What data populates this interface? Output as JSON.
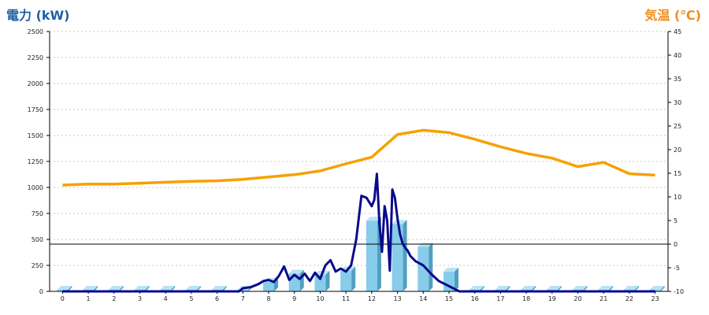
{
  "titles": {
    "left_axis": "電力 (kW)",
    "right_axis": "気温 (℃)"
  },
  "colors": {
    "power_line": "#0a0a8c",
    "temperature_line": "#f5a100",
    "bar_front": "#87cceb",
    "bar_top": "#b8e3f5",
    "bar_side": "#4f9fc0",
    "grid": "#c8c8c8",
    "left_title": "#1f5fa6",
    "right_title": "#f08c1e"
  },
  "chart_data": {
    "type": "bar+line",
    "xlabel": "",
    "categories": [
      "0",
      "1",
      "2",
      "3",
      "4",
      "5",
      "6",
      "7",
      "8",
      "9",
      "10",
      "11",
      "12",
      "13",
      "14",
      "15",
      "16",
      "17",
      "18",
      "19",
      "20",
      "21",
      "22",
      "23"
    ],
    "y_left": {
      "label": "電力 (kW)",
      "range": [
        0,
        2500
      ],
      "ticks": [
        0,
        250,
        500,
        750,
        1000,
        1250,
        1500,
        1750,
        2000,
        2250,
        2500
      ]
    },
    "y_right": {
      "label": "気温 (℃)",
      "range": [
        -10,
        45
      ],
      "ticks": [
        -10,
        -5,
        0,
        5,
        10,
        15,
        20,
        25,
        30,
        35,
        40,
        45
      ]
    },
    "gridlines": "horizontal dotted",
    "bars": {
      "axis": "left",
      "values": [
        0,
        0,
        0,
        0,
        0,
        0,
        0,
        10,
        90,
        170,
        160,
        200,
        680,
        650,
        430,
        190,
        0,
        0,
        0,
        0,
        0,
        0,
        0,
        0
      ]
    },
    "power_line": {
      "axis": "left",
      "x": [
        0,
        1,
        2,
        3,
        4,
        5,
        6,
        6.85,
        7,
        7.3,
        7.6,
        7.8,
        8,
        8.2,
        8.4,
        8.6,
        8.8,
        9,
        9.2,
        9.4,
        9.6,
        9.8,
        10,
        10.2,
        10.4,
        10.6,
        10.8,
        11,
        11.2,
        11.4,
        11.6,
        11.8,
        12,
        12.1,
        12.2,
        12.3,
        12.4,
        12.5,
        12.6,
        12.7,
        12.8,
        12.9,
        13,
        13.1,
        13.2,
        13.3,
        13.4,
        13.5,
        13.7,
        14,
        14.3,
        14.6,
        15,
        15.4,
        15.8,
        16,
        17,
        18,
        19,
        20,
        21,
        22,
        23
      ],
      "y": [
        0,
        0,
        0,
        0,
        0,
        0,
        0,
        0,
        30,
        40,
        70,
        100,
        110,
        90,
        150,
        240,
        110,
        160,
        120,
        170,
        100,
        180,
        120,
        250,
        300,
        190,
        220,
        190,
        250,
        500,
        920,
        900,
        820,
        880,
        1130,
        650,
        380,
        820,
        680,
        200,
        980,
        900,
        700,
        550,
        460,
        420,
        390,
        340,
        290,
        250,
        170,
        100,
        50,
        0,
        0,
        0,
        0,
        0,
        0,
        0,
        0,
        0,
        0
      ]
    },
    "temperature_line": {
      "axis": "right",
      "values": [
        12.5,
        12.7,
        12.7,
        12.9,
        13.1,
        13.3,
        13.4,
        13.7,
        14.2,
        14.7,
        15.5,
        17.0,
        18.4,
        23.2,
        24.1,
        23.6,
        22.2,
        20.6,
        19.2,
        18.2,
        16.4,
        17.3,
        14.9,
        14.6
      ]
    }
  }
}
